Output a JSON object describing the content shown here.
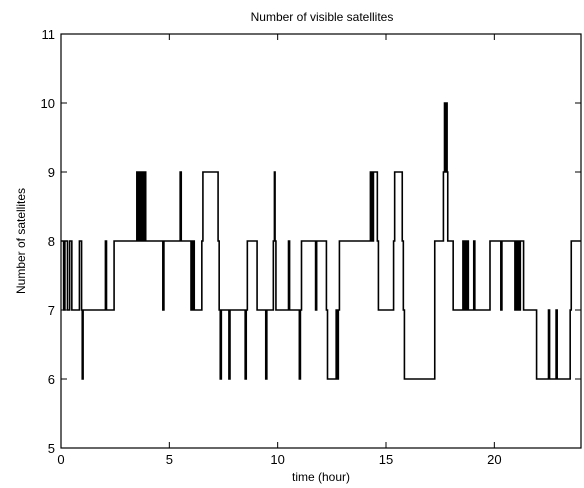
{
  "chart_data": {
    "type": "line",
    "title": "Number of visible satellites",
    "xlabel": "time (hour)",
    "ylabel": "Number of satellites",
    "xlim": [
      0,
      24
    ],
    "ylim": [
      5,
      11
    ],
    "xticks": [
      0,
      5,
      10,
      15,
      20
    ],
    "yticks": [
      5,
      6,
      7,
      8,
      9,
      10,
      11
    ],
    "grid": false,
    "line_style": "step",
    "series": [
      {
        "x": [
          0,
          0.12,
          0.18,
          0.3,
          0.4,
          0.5,
          0.85,
          0.95,
          0.98,
          1.02,
          1.05,
          1.2,
          2.05,
          2.1,
          2.45,
          2.5,
          3.5,
          3.55,
          3.58,
          3.61,
          3.64,
          3.67,
          3.7,
          3.73,
          3.76,
          3.79,
          3.82,
          3.85,
          3.88,
          3.91,
          3.95,
          4.7,
          4.75,
          5.5,
          5.55,
          6.0,
          6.03,
          6.06,
          6.1,
          6.15,
          6.5,
          6.55,
          7.25,
          7.3,
          7.35,
          7.4,
          7.75,
          7.8,
          8.5,
          8.55,
          8.6,
          9.0,
          9.05,
          9.45,
          9.5,
          9.8,
          9.85,
          9.88,
          9.92,
          10.5,
          10.55,
          11.0,
          11.05,
          11.1,
          11.75,
          11.8,
          12.25,
          12.3,
          12.7,
          12.75,
          12.8,
          12.85,
          14.25,
          14.28,
          14.32,
          14.35,
          14.38,
          14.42,
          14.6,
          14.65,
          15.35,
          15.4,
          15.75,
          15.8,
          15.85,
          17.25,
          17.3,
          17.65,
          17.7,
          17.73,
          17.76,
          17.82,
          17.85,
          18.05,
          18.1,
          18.55,
          18.6,
          18.65,
          18.7,
          18.75,
          18.8,
          18.85,
          19.05,
          19.1,
          19.75,
          19.8,
          20.3,
          20.35,
          20.95,
          21.0,
          21.05,
          21.1,
          21.15,
          21.2,
          21.35,
          21.4,
          21.95,
          22.0,
          22.5,
          22.55,
          22.85,
          22.9,
          23.5,
          23.55,
          23.95,
          24.0
        ],
        "y": [
          8,
          7,
          8,
          7,
          8,
          7,
          8,
          7,
          6,
          7,
          7,
          7,
          8,
          7,
          8,
          8,
          9,
          8,
          9,
          8,
          9,
          8,
          9,
          8,
          9,
          8,
          9,
          8,
          9,
          8,
          8,
          7,
          8,
          9,
          8,
          7,
          8,
          7,
          8,
          7,
          8,
          9,
          8,
          7,
          6,
          7,
          6,
          7,
          6,
          7,
          8,
          8,
          7,
          6,
          7,
          8,
          9,
          8,
          7,
          8,
          7,
          6,
          7,
          8,
          7,
          8,
          7,
          6,
          7,
          6,
          7,
          8,
          8,
          9,
          8,
          9,
          8,
          9,
          8,
          7,
          8,
          9,
          8,
          7,
          6,
          8,
          8,
          9,
          10,
          9,
          10,
          9,
          8,
          8,
          7,
          8,
          7,
          8,
          7,
          8,
          7,
          7,
          8,
          7,
          7,
          8,
          7,
          8,
          7,
          8,
          7,
          8,
          7,
          8,
          7,
          7,
          6,
          6,
          7,
          6,
          7,
          6,
          7,
          8,
          8,
          8
        ]
      }
    ]
  }
}
